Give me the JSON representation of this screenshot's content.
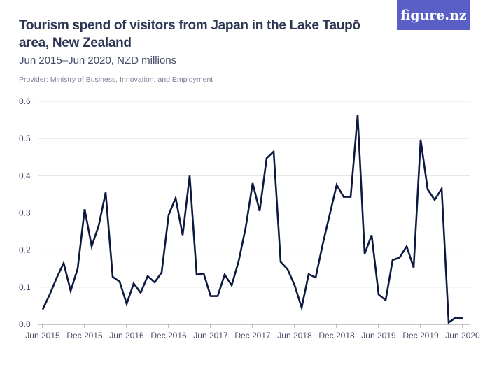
{
  "header": {
    "title": "Tourism spend of visitors from Japan in the Lake Taupō area, New Zealand",
    "subtitle": "Jun 2015–Jun 2020, NZD millions",
    "provider": "Provider: Ministry of Business, Innovation, and Employment",
    "logo": "figure.nz"
  },
  "colors": {
    "line": "#0d1a40",
    "grid": "#e3e3e3",
    "logo_bg": "#5a5fc7",
    "title": "#2c3653"
  },
  "chart_data": {
    "type": "line",
    "title": "Tourism spend of visitors from Japan in the Lake Taupō area, New Zealand",
    "subtitle": "Jun 2015–Jun 2020, NZD millions",
    "xlabel": "",
    "ylabel": "",
    "ylim": [
      0,
      0.6
    ],
    "yticks": [
      "0.0",
      "0.1",
      "0.2",
      "0.3",
      "0.4",
      "0.5",
      "0.6"
    ],
    "xticks": [
      "Jun 2015",
      "Dec 2015",
      "Jun 2016",
      "Dec 2016",
      "Jun 2017",
      "Dec 2017",
      "Jun 2018",
      "Dec 2018",
      "Jun 2019",
      "Dec 2019",
      "Jun 2020"
    ],
    "grid": true,
    "x_start": "2015-06",
    "x_frequency": "monthly",
    "values": [
      0.04,
      0.08,
      0.125,
      0.165,
      0.09,
      0.15,
      0.31,
      0.21,
      0.265,
      0.355,
      0.128,
      0.115,
      0.055,
      0.11,
      0.085,
      0.13,
      0.113,
      0.14,
      0.295,
      0.34,
      0.24,
      0.4,
      0.134,
      0.137,
      0.076,
      0.076,
      0.134,
      0.105,
      0.17,
      0.26,
      0.38,
      0.305,
      0.447,
      0.465,
      0.168,
      0.148,
      0.105,
      0.045,
      0.135,
      0.126,
      0.215,
      0.295,
      0.375,
      0.343,
      0.343,
      0.563,
      0.19,
      0.24,
      0.08,
      0.065,
      0.173,
      0.18,
      0.21,
      0.153,
      0.497,
      0.363,
      0.335,
      0.365,
      0.005,
      0.018,
      0.016
    ]
  }
}
